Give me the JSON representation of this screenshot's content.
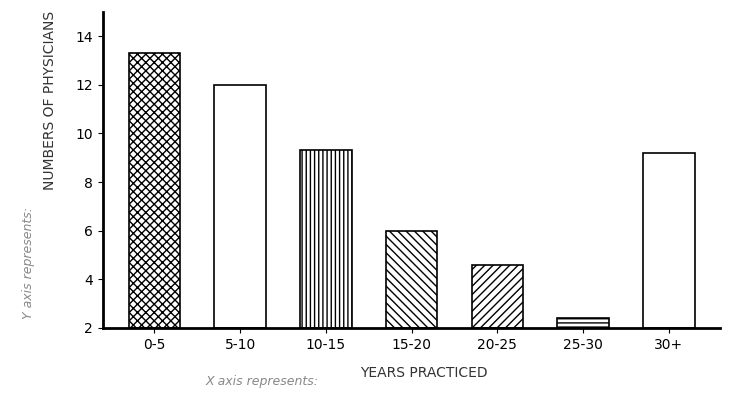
{
  "chart_data": {
    "type": "bar",
    "categories": [
      "0-5",
      "5-10",
      "10-15",
      "15-20",
      "20-25",
      "25-30",
      "30+"
    ],
    "values": [
      13.3,
      12,
      9.3,
      6,
      4.6,
      2.4,
      9.2
    ],
    "color": "#ffffff",
    "x_label": "YEARS PRACTICED",
    "y_label": "NUMBERS OF PHYSICIANS",
    "annotations": [
      "X axis represents:",
      "Y axis represents:"
    ],
    "ylim": [
      2,
      15
    ],
    "yticks": [
      2,
      4,
      6,
      8,
      10,
      12,
      14
    ],
    "grid": false
  }
}
